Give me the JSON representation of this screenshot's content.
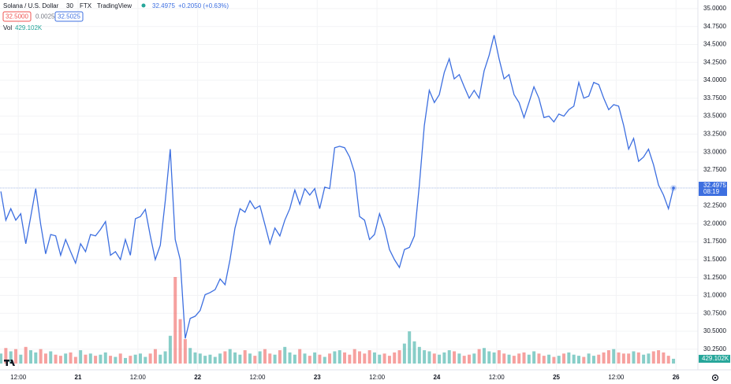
{
  "chart_data": {
    "type": "line",
    "title": "Solana / U.S. Dollar",
    "interval": "30",
    "exchange": "FTX",
    "source": "TradingView",
    "last_label": "32.4975",
    "change_label": "+0.2050 (+0.63%)",
    "bid_label": "32.5000",
    "spread_label": "0.0025",
    "ask_label": "32.5025",
    "countdown": "08:19",
    "color": "#3d6fe0",
    "up_color": "#26a69a",
    "down_color": "#ef5350",
    "grid": true,
    "x": [
      -15.5,
      -14.5,
      -13.5,
      -12.5,
      -11.5,
      -10.5,
      -9.5,
      -8.5,
      -7.5,
      -6.5,
      -5.5,
      -4.5,
      -3.5,
      -2.5,
      -1.5,
      -0.5,
      0.5,
      1.5,
      2.5,
      3.5,
      4.5,
      5.5,
      6.5,
      7.5,
      8.5,
      9.5,
      10.5,
      11.5,
      12.5,
      13.5,
      14.5,
      15.5,
      16.5,
      17.5,
      18.5,
      19.5,
      20.5,
      21.5,
      22.5,
      23.5,
      24.5,
      25.5,
      26.5,
      27.5,
      28.5,
      29.5,
      30.5,
      31.5,
      32.5,
      33.5,
      34.5,
      35.5,
      36.5,
      37.5,
      38.5,
      39.5,
      40.5,
      41.5,
      42.5,
      43.5,
      44.5,
      45.5,
      46.5,
      47.5,
      48.5,
      49.5,
      50.5,
      51.5,
      52.5,
      53.5,
      54.5,
      55.5,
      56.5,
      57.5,
      58.5,
      59.5,
      60.5,
      61.5,
      62.5,
      63.5,
      64.5,
      65.5,
      66.5,
      67.5,
      68.5,
      69.5,
      70.5,
      71.5,
      72.5,
      73.5,
      74.5,
      75.5,
      76.5,
      77.5,
      78.5,
      79.5,
      80.5,
      81.5,
      82.5,
      83.5,
      84.5,
      85.5,
      86.5,
      87.5,
      88.5,
      89.5,
      90.5,
      91.5,
      92.5,
      93.5,
      94.5,
      95.5,
      96.5,
      97.5,
      98.5,
      99.5,
      100.5,
      101.5,
      102.5,
      103.5,
      104.5,
      105.5,
      106.5,
      107.5,
      108.5,
      109.5,
      110.5,
      111.5,
      112.5,
      113.5,
      114.5,
      115.5,
      116.5,
      117.5,
      118.5,
      119.5
    ],
    "values": [
      32.45,
      32.05,
      32.21,
      32.05,
      32.14,
      31.72,
      32.1,
      32.49,
      31.99,
      31.58,
      31.85,
      31.83,
      31.56,
      31.78,
      31.61,
      31.45,
      31.72,
      31.61,
      31.85,
      31.83,
      31.92,
      32.03,
      31.56,
      31.61,
      31.5,
      31.78,
      31.56,
      32.07,
      32.1,
      32.2,
      31.83,
      31.5,
      31.7,
      32.32,
      33.04,
      31.78,
      31.5,
      30.4,
      30.68,
      30.71,
      30.79,
      31.01,
      31.04,
      31.08,
      31.23,
      31.15,
      31.5,
      31.94,
      32.21,
      32.16,
      32.32,
      32.21,
      32.25,
      31.99,
      31.72,
      31.94,
      31.83,
      32.05,
      32.21,
      32.47,
      32.27,
      32.49,
      32.4,
      32.49,
      32.21,
      32.51,
      32.49,
      33.06,
      33.08,
      33.06,
      32.93,
      32.71,
      32.1,
      32.05,
      31.78,
      31.85,
      32.14,
      31.94,
      31.64,
      31.5,
      31.39,
      31.64,
      31.67,
      31.83,
      32.54,
      33.37,
      33.86,
      33.69,
      33.8,
      34.11,
      34.3,
      34.02,
      34.08,
      33.91,
      33.75,
      33.86,
      33.75,
      34.13,
      34.35,
      34.63,
      34.3,
      34.02,
      34.08,
      33.8,
      33.69,
      33.48,
      33.69,
      33.91,
      33.75,
      33.48,
      33.5,
      33.42,
      33.53,
      33.5,
      33.59,
      33.64,
      33.97,
      33.75,
      33.78,
      33.97,
      33.94,
      33.75,
      33.59,
      33.66,
      33.64,
      33.37,
      33.04,
      33.19,
      32.87,
      32.93,
      33.04,
      32.82,
      32.54,
      32.4,
      32.21,
      32.4975
    ],
    "volume": {
      "name": "Vol",
      "value_label": "429.102K",
      "values": [
        900,
        1400,
        1100,
        1300,
        800,
        1500,
        1200,
        1000,
        1300,
        900,
        1100,
        800,
        700,
        900,
        1000,
        600,
        1200,
        800,
        900,
        700,
        800,
        1000,
        700,
        600,
        900,
        500,
        700,
        800,
        900,
        600,
        900,
        1300,
        800,
        1100,
        2500,
        7800,
        4000,
        2200,
        1400,
        1000,
        900,
        700,
        800,
        600,
        900,
        1100,
        1300,
        1000,
        800,
        1200,
        900,
        700,
        1100,
        1300,
        900,
        800,
        1200,
        1500,
        1000,
        800,
        1300,
        900,
        700,
        1000,
        800,
        600,
        900,
        1100,
        1200,
        1000,
        800,
        1300,
        1100,
        900,
        1200,
        1000,
        800,
        900,
        700,
        1000,
        1200,
        1800,
        2900,
        2000,
        1500,
        1200,
        1100,
        900,
        800,
        1000,
        1200,
        1100,
        900,
        700,
        800,
        900,
        1300,
        1400,
        1100,
        1000,
        1200,
        900,
        800,
        700,
        900,
        1000,
        800,
        1100,
        900,
        700,
        800,
        600,
        700,
        900,
        1000,
        800,
        700,
        600,
        900,
        700,
        800,
        1000,
        1200,
        1300,
        1000,
        900,
        900,
        1100,
        1000,
        800,
        900,
        1100,
        1200,
        1000,
        700,
        429.102
      ]
    },
    "xlim": [
      -15.67,
      124.4
    ],
    "ylim": [
      30.05,
      35.12
    ],
    "xticks": [
      {
        "value": -12,
        "label": "12:00"
      },
      {
        "value": 0,
        "label": "21"
      },
      {
        "value": 12,
        "label": "12:00"
      },
      {
        "value": 24,
        "label": "22"
      },
      {
        "value": 36,
        "label": "12:00"
      },
      {
        "value": 48,
        "label": "23"
      },
      {
        "value": 60,
        "label": "12:00"
      },
      {
        "value": 72,
        "label": "24"
      },
      {
        "value": 84,
        "label": "12:00"
      },
      {
        "value": 96,
        "label": "25"
      },
      {
        "value": 108,
        "label": "12:00"
      },
      {
        "value": 120,
        "label": "26"
      }
    ],
    "yticks": [
      {
        "value": 30.25,
        "label": "30.2500"
      },
      {
        "value": 30.5,
        "label": "30.5000"
      },
      {
        "value": 30.75,
        "label": "30.7500"
      },
      {
        "value": 31,
        "label": "31.0000"
      },
      {
        "value": 31.25,
        "label": "31.2500"
      },
      {
        "value": 31.5,
        "label": "31.5000"
      },
      {
        "value": 31.75,
        "label": "31.7500"
      },
      {
        "value": 32,
        "label": "32.0000"
      },
      {
        "value": 32.25,
        "label": "32.2500"
      },
      {
        "value": 32.5,
        "label": "32.5000"
      },
      {
        "value": 32.75,
        "label": "32.7500"
      },
      {
        "value": 33,
        "label": "33.0000"
      },
      {
        "value": 33.25,
        "label": "33.2500"
      },
      {
        "value": 33.5,
        "label": "33.5000"
      },
      {
        "value": 33.75,
        "label": "33.7500"
      },
      {
        "value": 34,
        "label": "34.0000"
      },
      {
        "value": 34.25,
        "label": "34.2500"
      },
      {
        "value": 34.5,
        "label": "34.5000"
      },
      {
        "value": 34.75,
        "label": "34.7500"
      },
      {
        "value": 35,
        "label": "35.0000"
      }
    ]
  }
}
